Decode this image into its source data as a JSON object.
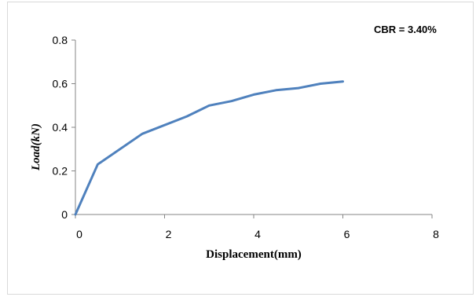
{
  "chart_data": {
    "type": "line",
    "title": "",
    "annotation": "CBR = 3.40%",
    "xlabel": "Displacement(mm)",
    "ylabel": "Load(kN)",
    "xlim": [
      0,
      8
    ],
    "ylim": [
      0,
      0.8
    ],
    "x_ticks": [
      0,
      2,
      4,
      6,
      8
    ],
    "x_tick_labels": [
      "0",
      "2",
      "4",
      "6",
      "8"
    ],
    "y_ticks": [
      0,
      0.2,
      0.4,
      0.6,
      0.8
    ],
    "y_tick_labels": [
      "0",
      "0.2",
      "0.4",
      "0.6",
      "0.8"
    ],
    "grid": false,
    "legend": "none",
    "line_color": "#4f81bd",
    "series": [
      {
        "x": [
          0,
          0.5,
          1.5,
          2.5,
          3.0,
          3.5,
          4.0,
          4.5,
          5.0,
          5.5,
          6.0
        ],
        "y": [
          0,
          0.23,
          0.37,
          0.45,
          0.5,
          0.52,
          0.55,
          0.57,
          0.58,
          0.6,
          0.61
        ]
      }
    ]
  }
}
